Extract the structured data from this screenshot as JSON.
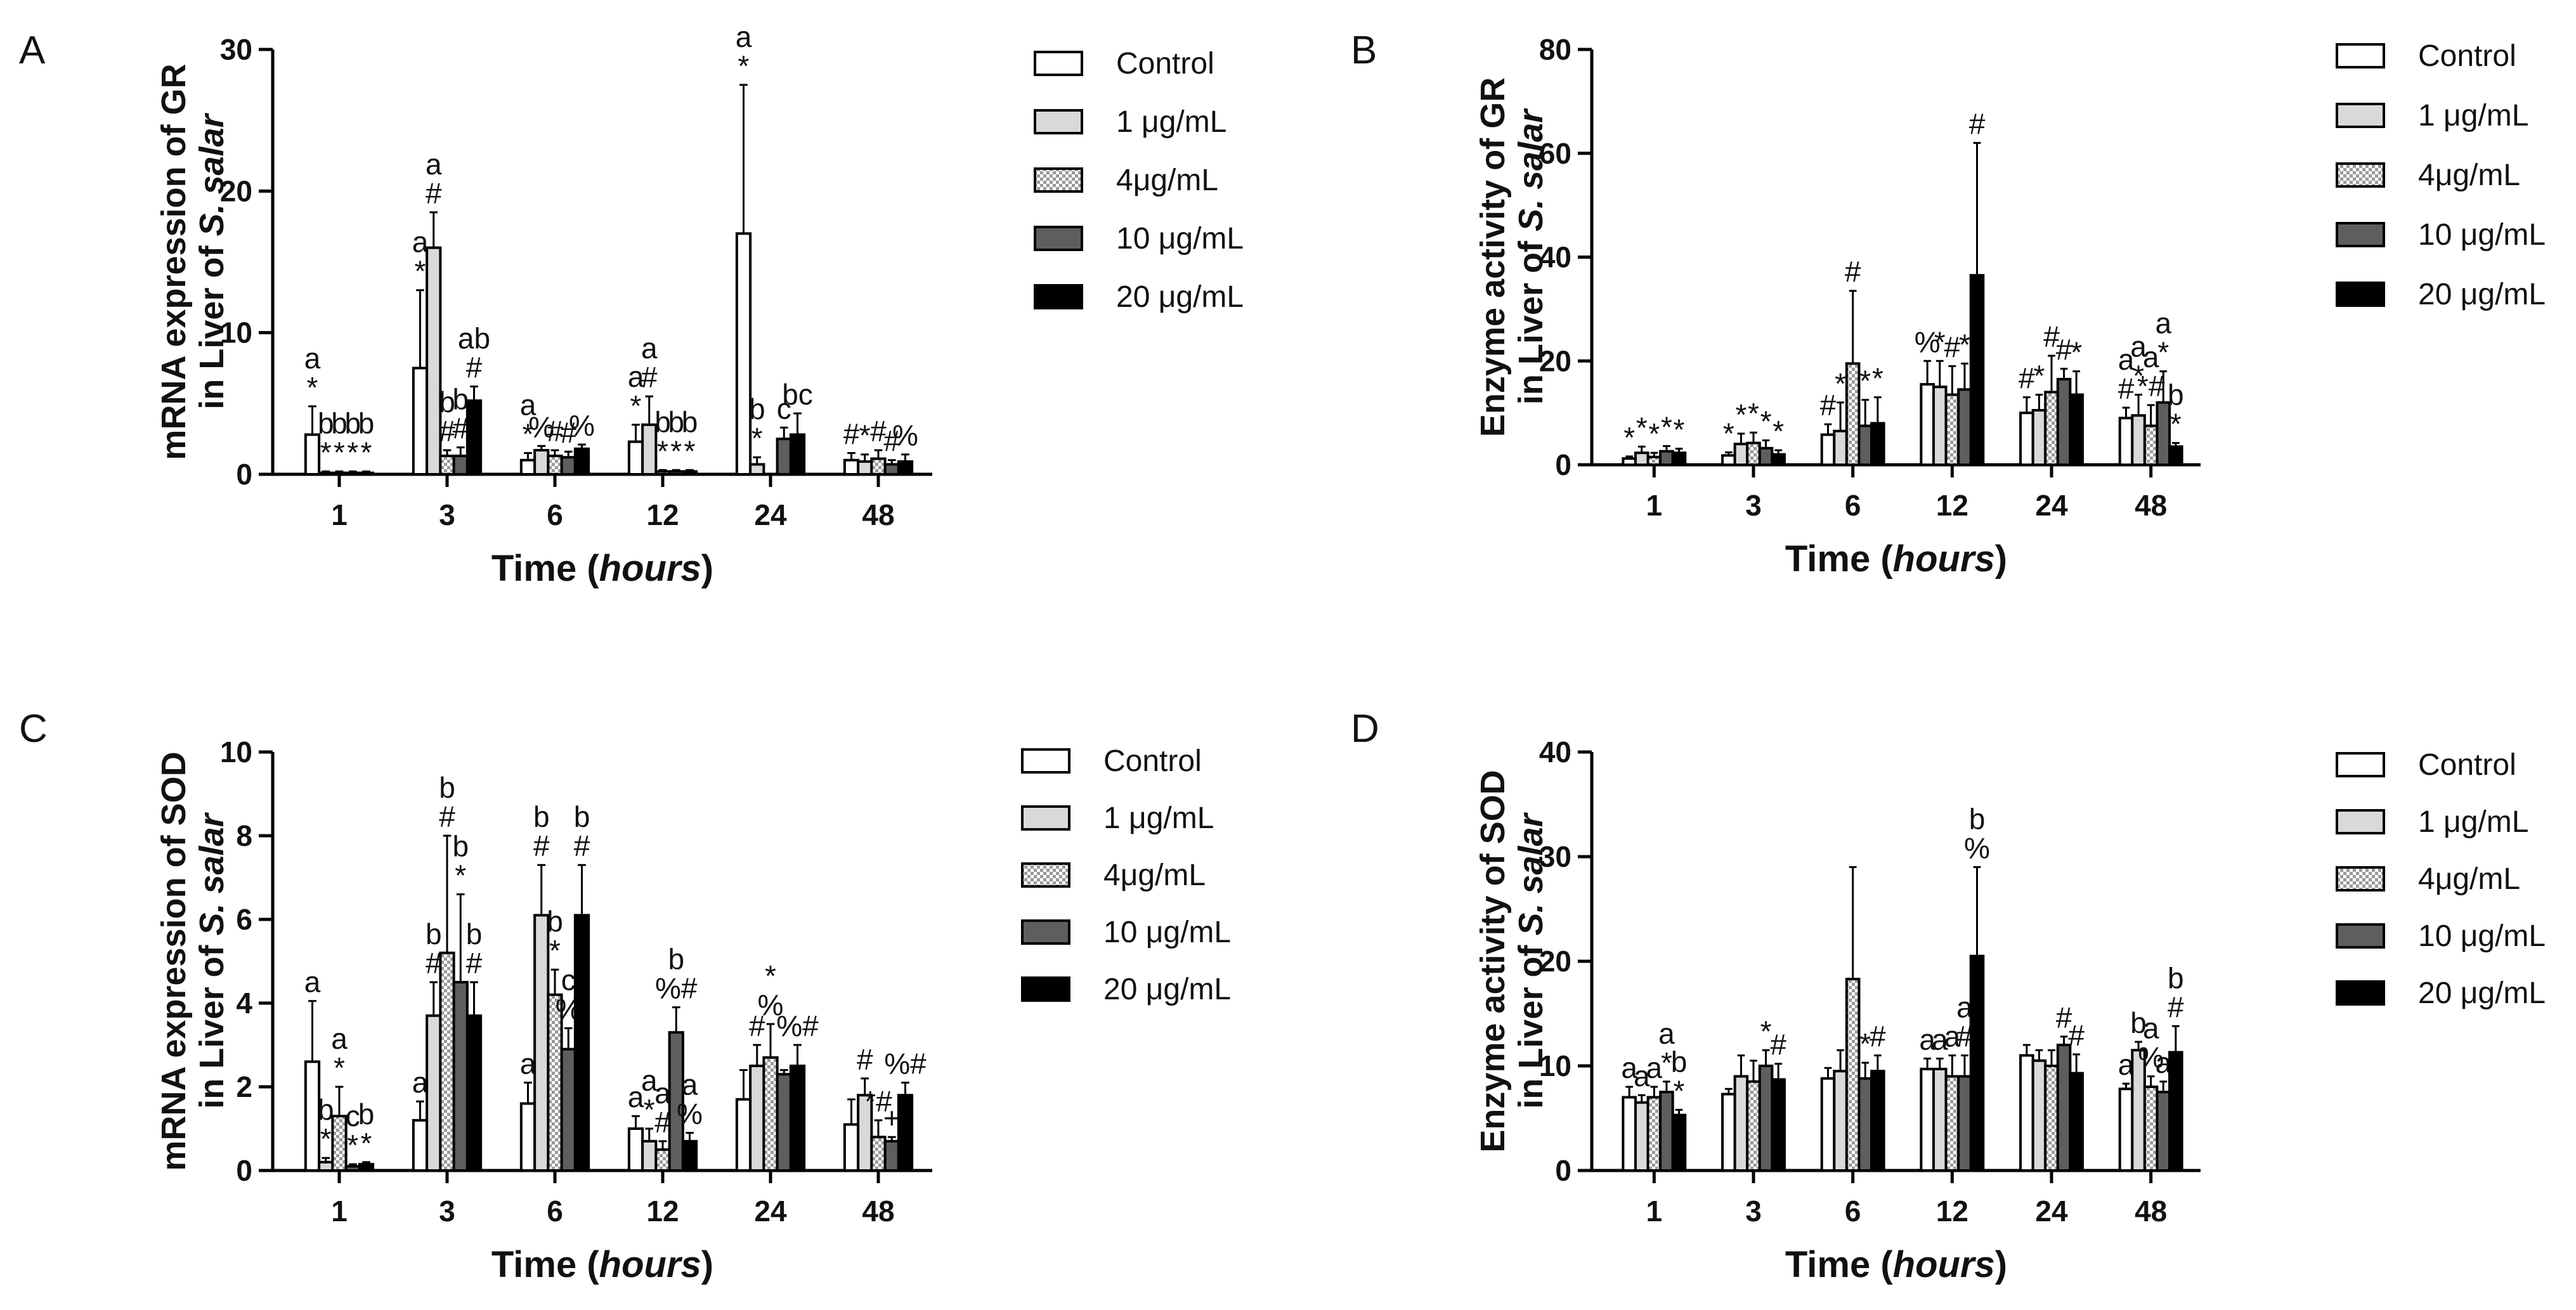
{
  "figure": {
    "legend_entries": [
      {
        "label": "Control",
        "fill": "#ffffff"
      },
      {
        "label": "1 μg/mL",
        "fill": "#d9d9d9"
      },
      {
        "label": "4μg/mL",
        "fill": "pattern"
      },
      {
        "label": "10 μg/mL",
        "fill": "#5e5e5e"
      },
      {
        "label": "20 μg/mL",
        "fill": "#000000"
      }
    ],
    "xlabel_main": "Time (",
    "xlabel_italic": "hours",
    "xlabel_end": ")",
    "ylabel_species": "S. salar"
  },
  "chart_data": [
    {
      "panel": "A",
      "type": "bar",
      "ylabel_line1": "mRNA expression of GR",
      "ylabel_line2": "in Liver of ",
      "xlabel": "Time (hours)",
      "ylim": [
        0,
        30
      ],
      "yticks": [
        0,
        10,
        20,
        30
      ],
      "categories": [
        "1",
        "3",
        "6",
        "12",
        "24",
        "48"
      ],
      "series": [
        {
          "name": "Control",
          "values": [
            2.8,
            7.5,
            1.0,
            2.3,
            17.0,
            1.0
          ],
          "errors": [
            2.0,
            5.5,
            0.5,
            1.2,
            10.5,
            0.5
          ],
          "labels": [
            [
              "a",
              "*"
            ],
            [
              "a",
              "*"
            ],
            [
              "a",
              "*"
            ],
            [
              "a",
              "*"
            ],
            [
              "a",
              "*"
            ],
            [
              "#"
            ]
          ]
        },
        {
          "name": "1 μg/mL",
          "values": [
            0.1,
            16.0,
            1.7,
            3.5,
            0.7,
            0.9
          ],
          "errors": [
            0.1,
            2.5,
            0.3,
            2.0,
            0.5,
            0.5
          ],
          "labels": [
            [
              "b",
              "*"
            ],
            [
              "a",
              "#"
            ],
            [
              "%"
            ],
            [
              "a",
              "#"
            ],
            [
              "b",
              "*"
            ],
            [
              "*"
            ]
          ]
        },
        {
          "name": "4μg/mL",
          "values": [
            0.1,
            1.3,
            1.3,
            0.2,
            0.0,
            1.1
          ],
          "errors": [
            0.1,
            0.4,
            0.4,
            0.1,
            0.0,
            0.6
          ],
          "labels": [
            [
              "b",
              "*"
            ],
            [
              "b",
              "#"
            ],
            [
              "#"
            ],
            [
              "b",
              "*"
            ],
            [],
            [
              "#"
            ]
          ]
        },
        {
          "name": "10 μg/mL",
          "values": [
            0.1,
            1.3,
            1.2,
            0.2,
            2.5,
            0.7
          ],
          "errors": [
            0.1,
            0.6,
            0.4,
            0.1,
            0.8,
            0.3
          ],
          "labels": [
            [
              "b",
              "*"
            ],
            [
              "b",
              "#"
            ],
            [
              "#"
            ],
            [
              "b",
              "*"
            ],
            [
              "c"
            ],
            [
              "#"
            ]
          ]
        },
        {
          "name": "20 μg/mL",
          "values": [
            0.1,
            5.2,
            1.8,
            0.2,
            2.8,
            0.9
          ],
          "errors": [
            0.1,
            1.0,
            0.3,
            0.1,
            1.5,
            0.5
          ],
          "labels": [
            [
              "b",
              "*"
            ],
            [
              "ab",
              "#"
            ],
            [
              "%"
            ],
            [
              "b",
              "*"
            ],
            [
              "bc"
            ],
            [
              "%"
            ]
          ]
        }
      ]
    },
    {
      "panel": "B",
      "type": "bar",
      "ylabel_line1": "Enzyme activity of GR",
      "ylabel_line2": "in Liver of ",
      "xlabel": "Time (hours)",
      "ylim": [
        0,
        80
      ],
      "yticks": [
        0,
        20,
        40,
        60,
        80
      ],
      "categories": [
        "1",
        "3",
        "6",
        "12",
        "24",
        "48"
      ],
      "series": [
        {
          "name": "Control",
          "values": [
            1.2,
            1.8,
            5.8,
            15.5,
            10.0,
            9.0
          ],
          "errors": [
            0.4,
            0.6,
            2.0,
            4.5,
            3.0,
            2.0
          ],
          "labels": [
            [
              "*"
            ],
            [
              "*"
            ],
            [
              "#"
            ],
            [
              "%"
            ],
            [
              "#"
            ],
            [
              "a",
              "#"
            ]
          ]
        },
        {
          "name": "1 μg/mL",
          "values": [
            2.3,
            4.0,
            6.5,
            15.0,
            10.5,
            9.5
          ],
          "errors": [
            1.2,
            2.0,
            5.5,
            5.0,
            3.0,
            4.0
          ],
          "labels": [
            [
              "*"
            ],
            [
              "*"
            ],
            [
              "*"
            ],
            [
              "*"
            ],
            [
              "*"
            ],
            [
              "a",
              "*"
            ]
          ]
        },
        {
          "name": "4μg/mL",
          "values": [
            1.5,
            4.2,
            19.5,
            13.5,
            14.0,
            7.5
          ],
          "errors": [
            0.8,
            2.0,
            14.0,
            5.5,
            7.0,
            4.0
          ],
          "labels": [
            [
              "*"
            ],
            [
              "*"
            ],
            [
              "#"
            ],
            [
              "#"
            ],
            [
              "#"
            ],
            [
              "a",
              "*#"
            ]
          ]
        },
        {
          "name": "10 μg/mL",
          "values": [
            2.6,
            3.2,
            7.5,
            14.5,
            16.5,
            12.0
          ],
          "errors": [
            1.0,
            1.5,
            5.0,
            5.0,
            2.0,
            6.0
          ],
          "labels": [
            [
              "*"
            ],
            [
              "*"
            ],
            [
              "*"
            ],
            [
              "*"
            ],
            [
              "#"
            ],
            [
              "a",
              "*"
            ]
          ]
        },
        {
          "name": "20 μg/mL",
          "values": [
            2.3,
            2.0,
            8.0,
            36.5,
            13.5,
            3.5
          ],
          "errors": [
            0.8,
            0.8,
            5.0,
            25.5,
            4.5,
            0.7
          ],
          "labels": [
            [
              "*"
            ],
            [
              "*"
            ],
            [
              "*"
            ],
            [
              "#"
            ],
            [
              "*"
            ],
            [
              "b",
              "*"
            ]
          ]
        }
      ]
    },
    {
      "panel": "C",
      "type": "bar",
      "ylabel_line1": "mRNA expression of SOD",
      "ylabel_line2": "in Liver of ",
      "xlabel": "Time (hours)",
      "ylim": [
        0,
        10
      ],
      "yticks": [
        0,
        2,
        4,
        6,
        8,
        10
      ],
      "categories": [
        "1",
        "3",
        "6",
        "12",
        "24",
        "48"
      ],
      "series": [
        {
          "name": "Control",
          "values": [
            2.6,
            1.2,
            1.6,
            1.0,
            1.7,
            1.1
          ],
          "errors": [
            1.45,
            0.45,
            0.5,
            0.3,
            0.7,
            0.6
          ],
          "labels": [
            [
              "a"
            ],
            [
              "a"
            ],
            [
              "a"
            ],
            [
              "a"
            ],
            [],
            []
          ]
        },
        {
          "name": "1 μg/mL",
          "values": [
            0.2,
            3.7,
            6.1,
            0.7,
            2.5,
            1.8
          ],
          "errors": [
            0.1,
            0.8,
            1.2,
            0.3,
            0.5,
            0.4
          ],
          "labels": [
            [
              "b",
              "*"
            ],
            [
              "b",
              "#"
            ],
            [
              "b",
              "#"
            ],
            [
              "a",
              "*"
            ],
            [
              "#"
            ],
            [
              "#"
            ]
          ]
        },
        {
          "name": "4μg/mL",
          "values": [
            1.3,
            5.2,
            4.2,
            0.5,
            2.7,
            0.8
          ],
          "errors": [
            0.7,
            2.8,
            0.6,
            0.2,
            0.8,
            0.4
          ],
          "labels": [
            [
              "a",
              "*"
            ],
            [
              "b",
              "#"
            ],
            [
              "b",
              "*"
            ],
            [
              "a",
              "#"
            ],
            [
              "*",
              "%"
            ],
            [
              "*#"
            ]
          ]
        },
        {
          "name": "10 μg/mL",
          "values": [
            0.1,
            4.5,
            2.9,
            3.3,
            2.3,
            0.7
          ],
          "errors": [
            0.05,
            2.1,
            0.5,
            0.6,
            0.1,
            0.1
          ],
          "labels": [
            [
              "c",
              "*"
            ],
            [
              "b",
              "*"
            ],
            [
              "c",
              "%"
            ],
            [
              "b",
              "%#"
            ],
            [],
            [
              "+"
            ]
          ]
        },
        {
          "name": "20 μg/mL",
          "values": [
            0.15,
            3.7,
            6.1,
            0.7,
            2.5,
            1.8
          ],
          "errors": [
            0.05,
            0.8,
            1.2,
            0.2,
            0.5,
            0.3
          ],
          "labels": [
            [
              "b",
              "*"
            ],
            [
              "b",
              "#"
            ],
            [
              "b",
              "#"
            ],
            [
              "a",
              "%"
            ],
            [
              "%#"
            ],
            [
              "%#"
            ]
          ]
        }
      ]
    },
    {
      "panel": "D",
      "type": "bar",
      "ylabel_line1": "Enzyme activity of SOD",
      "ylabel_line2": "in Liver of ",
      "xlabel": "Time (hours)",
      "ylim": [
        0,
        40
      ],
      "yticks": [
        0,
        10,
        20,
        30,
        40
      ],
      "categories": [
        "1",
        "3",
        "6",
        "12",
        "24",
        "48"
      ],
      "series": [
        {
          "name": "Control",
          "values": [
            7.0,
            7.3,
            8.8,
            9.7,
            11.0,
            7.8
          ],
          "errors": [
            1.0,
            0.5,
            1.0,
            1.0,
            1.0,
            0.5
          ],
          "labels": [
            [
              "a"
            ],
            [],
            [],
            [
              "a"
            ],
            [],
            [
              "a"
            ]
          ]
        },
        {
          "name": "1 μg/mL",
          "values": [
            6.5,
            9.0,
            9.5,
            9.7,
            10.5,
            11.5
          ],
          "errors": [
            0.7,
            2.0,
            2.0,
            1.0,
            1.0,
            0.8
          ],
          "labels": [
            [
              "a"
            ],
            [],
            [],
            [
              "a"
            ],
            [],
            [
              "b"
            ]
          ]
        },
        {
          "name": "4μg/mL",
          "values": [
            7.0,
            8.5,
            18.3,
            9.0,
            10.0,
            8.0
          ],
          "errors": [
            1.0,
            2.0,
            10.7,
            2.0,
            1.5,
            1.0
          ],
          "labels": [
            [
              "a"
            ],
            [],
            [],
            [
              "a"
            ],
            [],
            [
              "a",
              "%"
            ]
          ]
        },
        {
          "name": "10 μg/mL",
          "values": [
            7.5,
            10.0,
            8.8,
            9.0,
            12.0,
            7.5
          ],
          "errors": [
            1.0,
            1.5,
            1.5,
            2.0,
            0.8,
            1.0
          ],
          "labels": [
            [
              "a",
              "*"
            ],
            [
              "*"
            ],
            [
              "*"
            ],
            [
              "a",
              "#"
            ],
            [
              "#"
            ],
            [
              "a"
            ]
          ]
        },
        {
          "name": "20 μg/mL",
          "values": [
            5.3,
            8.7,
            9.5,
            20.5,
            9.3,
            11.3
          ],
          "errors": [
            0.5,
            1.5,
            1.5,
            8.5,
            1.8,
            2.5
          ],
          "labels": [
            [
              "b",
              "*"
            ],
            [
              "#"
            ],
            [
              "#"
            ],
            [
              "b",
              "%"
            ],
            [
              "#"
            ],
            [
              "b",
              "#"
            ]
          ]
        }
      ]
    }
  ]
}
